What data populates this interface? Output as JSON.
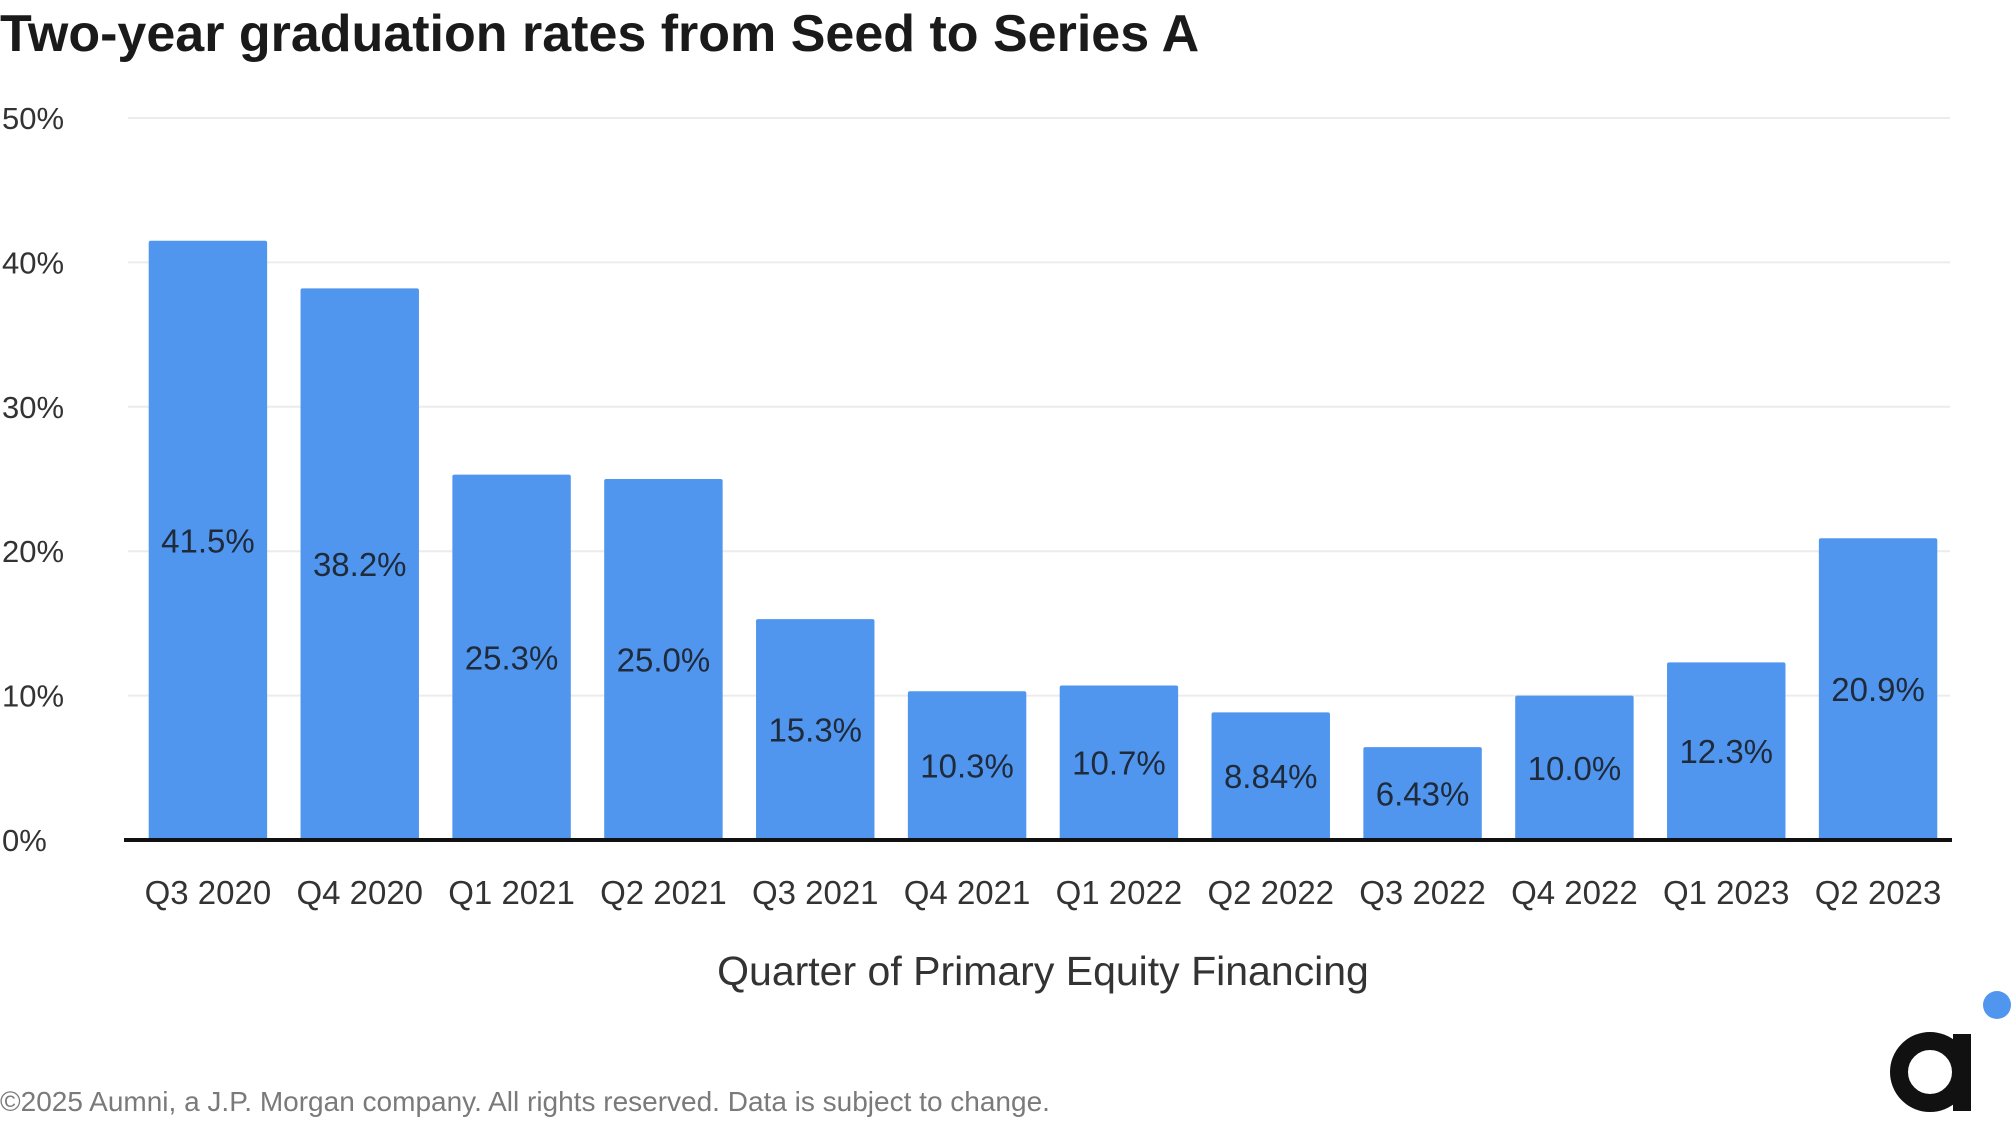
{
  "chart_data": {
    "type": "bar",
    "title": "Two-year graduation rates from Seed to Series A",
    "xlabel": "Quarter of Primary Equity Financing",
    "ylabel": "",
    "categories": [
      "Q3 2020",
      "Q4 2020",
      "Q1 2021",
      "Q2 2021",
      "Q3 2021",
      "Q4 2021",
      "Q1 2022",
      "Q2 2022",
      "Q3 2022",
      "Q4 2022",
      "Q1 2023",
      "Q2 2023"
    ],
    "values": [
      41.5,
      38.2,
      25.3,
      25.0,
      15.3,
      10.3,
      10.7,
      8.84,
      6.43,
      10.0,
      12.3,
      20.9
    ],
    "value_labels": [
      "41.5%",
      "38.2%",
      "25.3%",
      "25.0%",
      "15.3%",
      "10.3%",
      "10.7%",
      "8.84%",
      "6.43%",
      "10.0%",
      "12.3%",
      "20.9%"
    ],
    "ylim": [
      0,
      50
    ],
    "yticks": [
      0,
      10,
      20,
      30,
      40,
      50
    ],
    "ytick_labels": [
      "0%",
      "10%",
      "20%",
      "30%",
      "40%",
      "50%"
    ],
    "grid": true,
    "legend": "none",
    "bar_color": "#5096ee"
  },
  "footer": "©2025 Aumni, a J.P. Morgan company. All rights reserved. Data is subject to change.",
  "logo": {
    "name": "aumni-logo-icon",
    "letter_color": "#111111",
    "dot_color": "#5096ee"
  }
}
